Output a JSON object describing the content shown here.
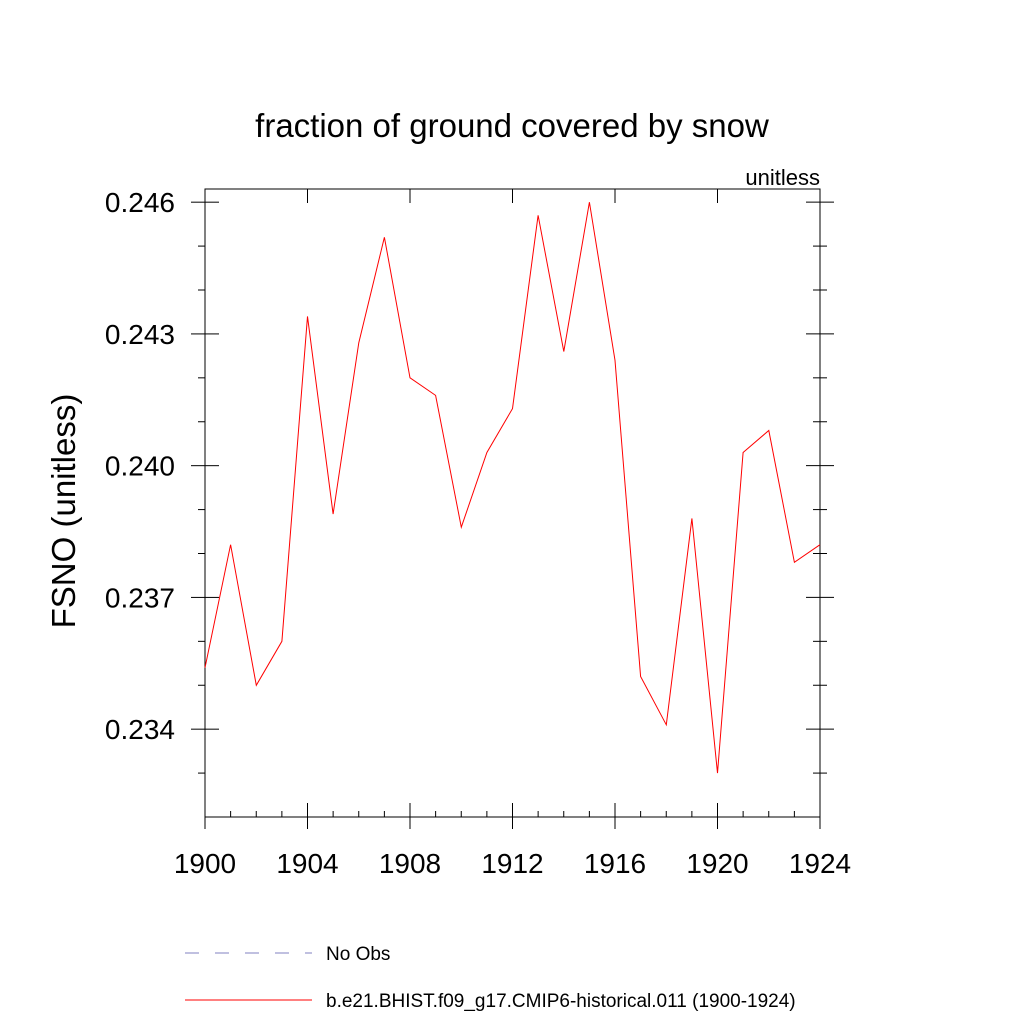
{
  "chart_data": {
    "type": "line",
    "title": "fraction of ground covered by snow",
    "units_label": "unitless",
    "ylabel": "FSNO  (unitless)",
    "xlabel": "",
    "xlim": [
      1900,
      1924
    ],
    "ylim": [
      0.232,
      0.2463
    ],
    "x_ticks": [
      1900,
      1904,
      1908,
      1912,
      1916,
      1920,
      1924
    ],
    "x_tick_labels": [
      "1900",
      "1904",
      "1908",
      "1912",
      "1916",
      "1920",
      "1924"
    ],
    "y_ticks": [
      0.234,
      0.237,
      0.24,
      0.243,
      0.246
    ],
    "y_tick_labels": [
      "0.234",
      "0.237",
      "0.240",
      "0.243",
      "0.246"
    ],
    "y_minor_ticks": [
      0.233,
      0.235,
      0.236,
      0.238,
      0.239,
      0.241,
      0.242,
      0.244,
      0.245
    ],
    "grid": false,
    "legend_position": "bottom",
    "series": [
      {
        "name": "b.e21.BHIST.f09_g17.CMIP6-historical.011 (1900-1924)",
        "color": "#ff0000",
        "dash": "solid",
        "x": [
          1900,
          1901,
          1902,
          1903,
          1904,
          1905,
          1906,
          1907,
          1908,
          1909,
          1910,
          1911,
          1912,
          1913,
          1914,
          1915,
          1916,
          1917,
          1918,
          1919,
          1920,
          1921,
          1922,
          1923,
          1924
        ],
        "y": [
          0.2354,
          0.2382,
          0.235,
          0.236,
          0.2434,
          0.2389,
          0.2428,
          0.2452,
          0.242,
          0.2416,
          0.2386,
          0.2403,
          0.2413,
          0.2457,
          0.2426,
          0.246,
          0.2424,
          0.2352,
          0.2341,
          0.2388,
          0.233,
          0.2403,
          0.2408,
          0.2378,
          0.2382
        ]
      }
    ],
    "legend": [
      {
        "label": "No Obs",
        "color": "#8080c0",
        "dash": "dashed"
      },
      {
        "label": "b.e21.BHIST.f09_g17.CMIP6-historical.011 (1900-1924)",
        "color": "#ff0000",
        "dash": "solid"
      }
    ]
  }
}
